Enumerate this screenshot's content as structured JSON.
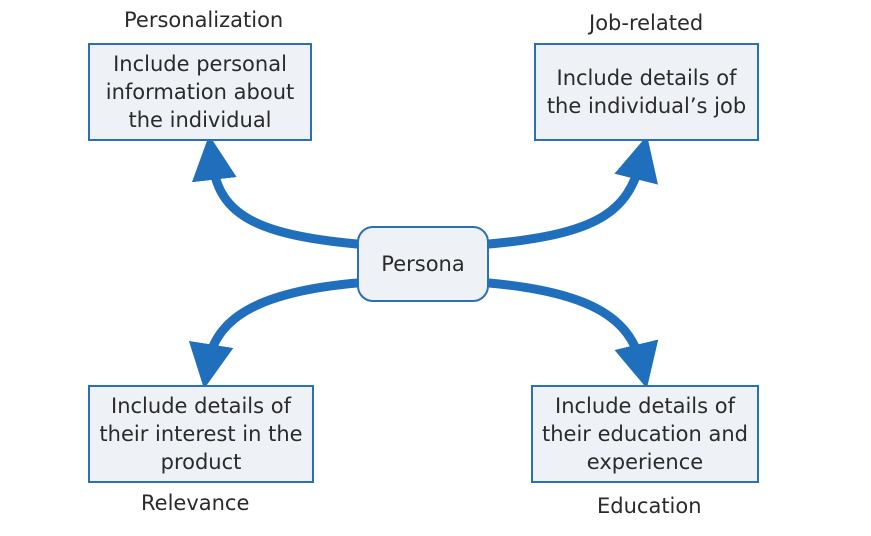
{
  "center": {
    "label": "Persona"
  },
  "nodes": {
    "top_left": {
      "caption": "Personalization",
      "text": "Include personal information about the individual"
    },
    "top_right": {
      "caption": "Job-related",
      "text": "Include details of the individual’s job"
    },
    "bottom_left": {
      "caption": "Relevance",
      "text": "Include details of their interest in the product"
    },
    "bottom_right": {
      "caption": "Education",
      "text": "Include details of their education and experience"
    }
  },
  "colors": {
    "arrow": "#1f6fbd",
    "box_border": "#2b6fb4",
    "box_fill": "#eef2f7"
  }
}
